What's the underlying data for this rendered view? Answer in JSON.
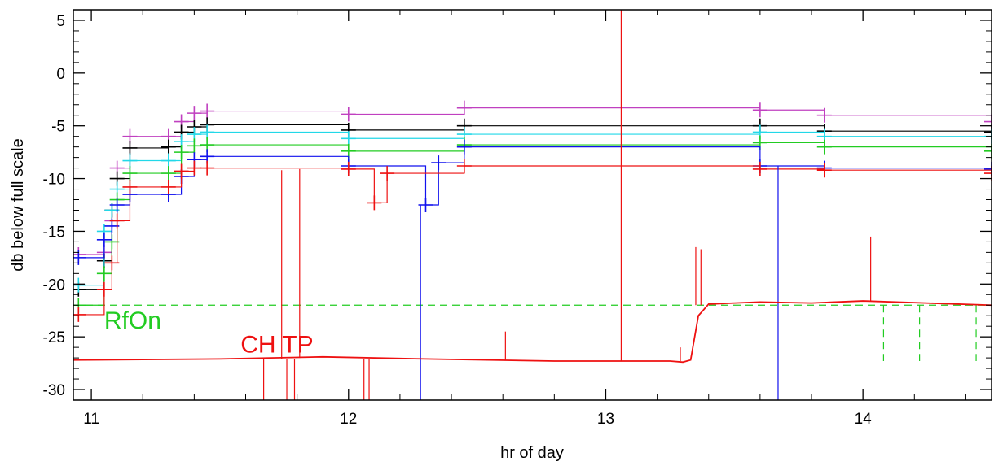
{
  "chart_data": {
    "type": "line",
    "xlabel": "hr of day",
    "ylabel": "db below full scale",
    "xlim": [
      10.93,
      14.5
    ],
    "ylim": [
      -31,
      6
    ],
    "xticks": [
      11,
      12,
      13,
      14
    ],
    "yticks": [
      5,
      0,
      -5,
      -10,
      -15,
      -20,
      -25,
      -30
    ],
    "grid": false,
    "annotations": [
      {
        "text": "RfOn",
        "x": 11.05,
        "y": -24.2,
        "color": "#22cc22"
      },
      {
        "text": "CH TP",
        "x": 11.58,
        "y": -26.5,
        "color": "#ee1111"
      }
    ],
    "colors": {
      "magenta": "#c040c0",
      "cyan": "#22d8e8",
      "black": "#000000",
      "green": "#22cc22",
      "blue": "#1111ee",
      "red": "#ee1111"
    },
    "series": [
      {
        "color": "magenta",
        "x": [
          10.95,
          11.05,
          11.08,
          11.1,
          11.15,
          11.3,
          11.35,
          11.4,
          11.45,
          12.0,
          12.45,
          13.6,
          13.85,
          14.5
        ],
        "y": [
          -17.2,
          -17,
          -14,
          -9,
          -6,
          -6,
          -4.6,
          -3.8,
          -3.6,
          -3.9,
          -3.3,
          -3.5,
          -4,
          -4.6
        ]
      },
      {
        "color": "black",
        "x": [
          10.95,
          11.05,
          11.08,
          11.1,
          11.15,
          11.3,
          11.35,
          11.4,
          11.45,
          12.0,
          12.45,
          13.6,
          13.85,
          14.5
        ],
        "y": [
          -20.5,
          -17.8,
          -13,
          -10,
          -7.1,
          -7,
          -5.6,
          -5.1,
          -4.9,
          -5.4,
          -5,
          -5,
          -5.5,
          -5.6
        ]
      },
      {
        "color": "cyan",
        "x": [
          10.95,
          11.05,
          11.08,
          11.1,
          11.15,
          11.3,
          11.35,
          11.4,
          11.45,
          12.0,
          12.45,
          13.6,
          13.85,
          14.5
        ],
        "y": [
          -20.1,
          -15,
          -13,
          -11,
          -8.3,
          -8.3,
          -6.5,
          -5.8,
          -5.6,
          -6.2,
          -5.8,
          -5.6,
          -6,
          -6
        ]
      },
      {
        "color": "green",
        "x": [
          10.95,
          11.05,
          11.08,
          11.1,
          11.15,
          11.3,
          11.35,
          11.4,
          11.45,
          12.0,
          12.45,
          13.6,
          13.85,
          14.5
        ],
        "y": [
          -22,
          -19,
          -16,
          -12,
          -9.5,
          -9.5,
          -7.5,
          -6.9,
          -6.8,
          -7.4,
          -6.8,
          -6.6,
          -7,
          -7.4
        ]
      },
      {
        "color": "blue",
        "x": [
          10.95,
          11.05,
          11.08,
          11.1,
          11.15,
          11.3,
          11.35,
          11.4,
          11.45,
          12.0,
          12.3,
          12.35,
          12.45,
          13.6,
          13.85,
          14.5
        ],
        "y": [
          -17.5,
          -15.8,
          -14.5,
          -12.5,
          -11.5,
          -11.5,
          -9.8,
          -8.2,
          -7.9,
          -8.8,
          -12.5,
          -8.5,
          -7,
          -8.8,
          -9,
          -9.1
        ]
      },
      {
        "color": "red",
        "x": [
          10.95,
          11.05,
          11.08,
          11.1,
          11.15,
          11.3,
          11.35,
          11.4,
          11.45,
          12.0,
          12.1,
          12.15,
          12.45,
          13.6,
          13.85,
          14.5
        ],
        "y": [
          -22.9,
          -20.5,
          -18,
          -14,
          -10.8,
          -10.8,
          -9.3,
          -9,
          -9,
          -9.1,
          -12.3,
          -9.5,
          -8.8,
          -9.1,
          -9.2,
          -9.5
        ]
      }
    ],
    "rfon": {
      "color": "green",
      "level": -22.0,
      "dips": [
        14.08,
        14.22,
        14.44
      ],
      "dip_to": -27.3
    },
    "chtp": {
      "color": "red",
      "x": [
        10.93,
        11.5,
        11.9,
        12.3,
        12.8,
        13.25,
        13.3,
        13.33,
        13.36,
        13.4,
        13.6,
        13.8,
        14.0,
        14.5
      ],
      "y": [
        -27.2,
        -27.1,
        -26.9,
        -27.1,
        -27.3,
        -27.3,
        -27.4,
        -27.2,
        -23,
        -21.9,
        -21.7,
        -21.8,
        -21.6,
        -22.0
      ],
      "spikes": [
        {
          "x": 11.67,
          "from": -27.1,
          "to": -31
        },
        {
          "x": 11.74,
          "from": -27.1,
          "to": -9.2
        },
        {
          "x": 11.76,
          "from": -27.1,
          "to": -31
        },
        {
          "x": 11.79,
          "from": -27.1,
          "to": -31
        },
        {
          "x": 11.81,
          "from": -27.0,
          "to": -9.1
        },
        {
          "x": 12.06,
          "from": -27.1,
          "to": -31
        },
        {
          "x": 12.08,
          "from": -27.1,
          "to": -31
        },
        {
          "x": 12.61,
          "from": -27.2,
          "to": -24.5
        },
        {
          "x": 13.06,
          "from": -27.3,
          "to": 6
        },
        {
          "x": 13.29,
          "from": -27.3,
          "to": -26
        },
        {
          "x": 13.35,
          "from": -22,
          "to": -16.5
        },
        {
          "x": 13.37,
          "from": -22,
          "to": -16.7
        },
        {
          "x": 14.03,
          "from": -21.6,
          "to": -15.5
        }
      ]
    },
    "blue_drops": [
      {
        "x": 12.28,
        "from": -12.5,
        "to": -31
      },
      {
        "x": 13.67,
        "from": -8.8,
        "to": -31
      }
    ]
  }
}
